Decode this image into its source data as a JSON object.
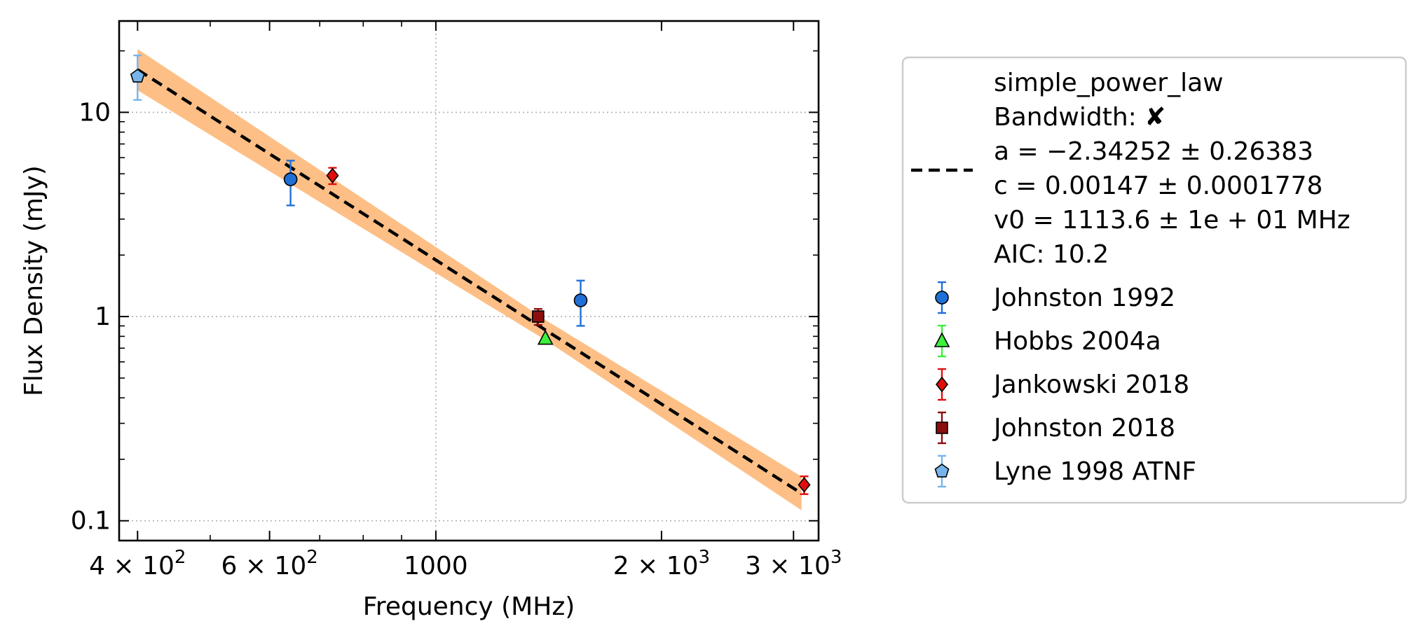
{
  "chart_data": {
    "type": "scatter",
    "xlabel": "Frequency (MHz)",
    "ylabel": "Flux Density (mJy)",
    "xscale": "log",
    "yscale": "log",
    "xlim": [
      378,
      3240
    ],
    "ylim": [
      0.08,
      28
    ],
    "grid": true,
    "legend_position": "outside-right",
    "x_ticks": [
      {
        "value": 400,
        "base": "4 × 10",
        "exp": "2"
      },
      {
        "value": 600,
        "base": "6 × 10",
        "exp": "2"
      },
      {
        "value": 1000,
        "base": "1000",
        "exp": ""
      },
      {
        "value": 2000,
        "base": "2 × 10",
        "exp": "3"
      },
      {
        "value": 3000,
        "base": "3 × 10",
        "exp": "3"
      }
    ],
    "y_ticks": [
      {
        "value": 0.1,
        "label": "0.1"
      },
      {
        "value": 1,
        "label": "1"
      },
      {
        "value": 10,
        "label": "10"
      }
    ],
    "fit": {
      "model": "simple_power_law",
      "a": -2.34252,
      "c": 0.00147,
      "v0": 1113.6,
      "x_range": [
        400,
        3075
      ],
      "color": "#000000",
      "band_color": "#fdbf86",
      "legend_lines": [
        "simple_power_law",
        "Bandwidth: ✘",
        "a = −2.34252 ± 0.26383",
        "c = 0.00147 ± 0.0001778",
        "v0 = 1113.6 ± 1e + 01 MHz",
        "AIC: 10.2"
      ]
    },
    "series": [
      {
        "name": "Johnston 1992",
        "marker": "circle",
        "color": "#1f6fd6",
        "ecolor": "#1f6fd6",
        "points": [
          {
            "x": 640,
            "y": 4.7,
            "lo": 3.5,
            "hi": 5.8
          },
          {
            "x": 1560,
            "y": 1.2,
            "lo": 0.9,
            "hi": 1.5
          }
        ]
      },
      {
        "name": "Hobbs 2004a",
        "marker": "triangle",
        "color": "#3cf03c",
        "ecolor": "#3cf03c",
        "points": [
          {
            "x": 1400,
            "y": 0.78,
            "lo": 0.78,
            "hi": 0.78
          }
        ]
      },
      {
        "name": "Jankowski 2018",
        "marker": "diamond",
        "color": "#e30c0c",
        "ecolor": "#e30c0c",
        "points": [
          {
            "x": 728,
            "y": 4.9,
            "lo": 4.45,
            "hi": 5.35
          },
          {
            "x": 3100,
            "y": 0.15,
            "lo": 0.135,
            "hi": 0.165
          }
        ]
      },
      {
        "name": "Johnston 2018",
        "marker": "square",
        "color": "#8b0e0e",
        "ecolor": "#8b0e0e",
        "points": [
          {
            "x": 1369,
            "y": 1.0,
            "lo": 0.91,
            "hi": 1.09
          }
        ]
      },
      {
        "name": "Lyne 1998 ATNF",
        "marker": "pentagon",
        "color": "#76b4ea",
        "ecolor": "#76b4ea",
        "points": [
          {
            "x": 400,
            "y": 15.0,
            "lo": 11.5,
            "hi": 19.0
          }
        ]
      }
    ]
  }
}
